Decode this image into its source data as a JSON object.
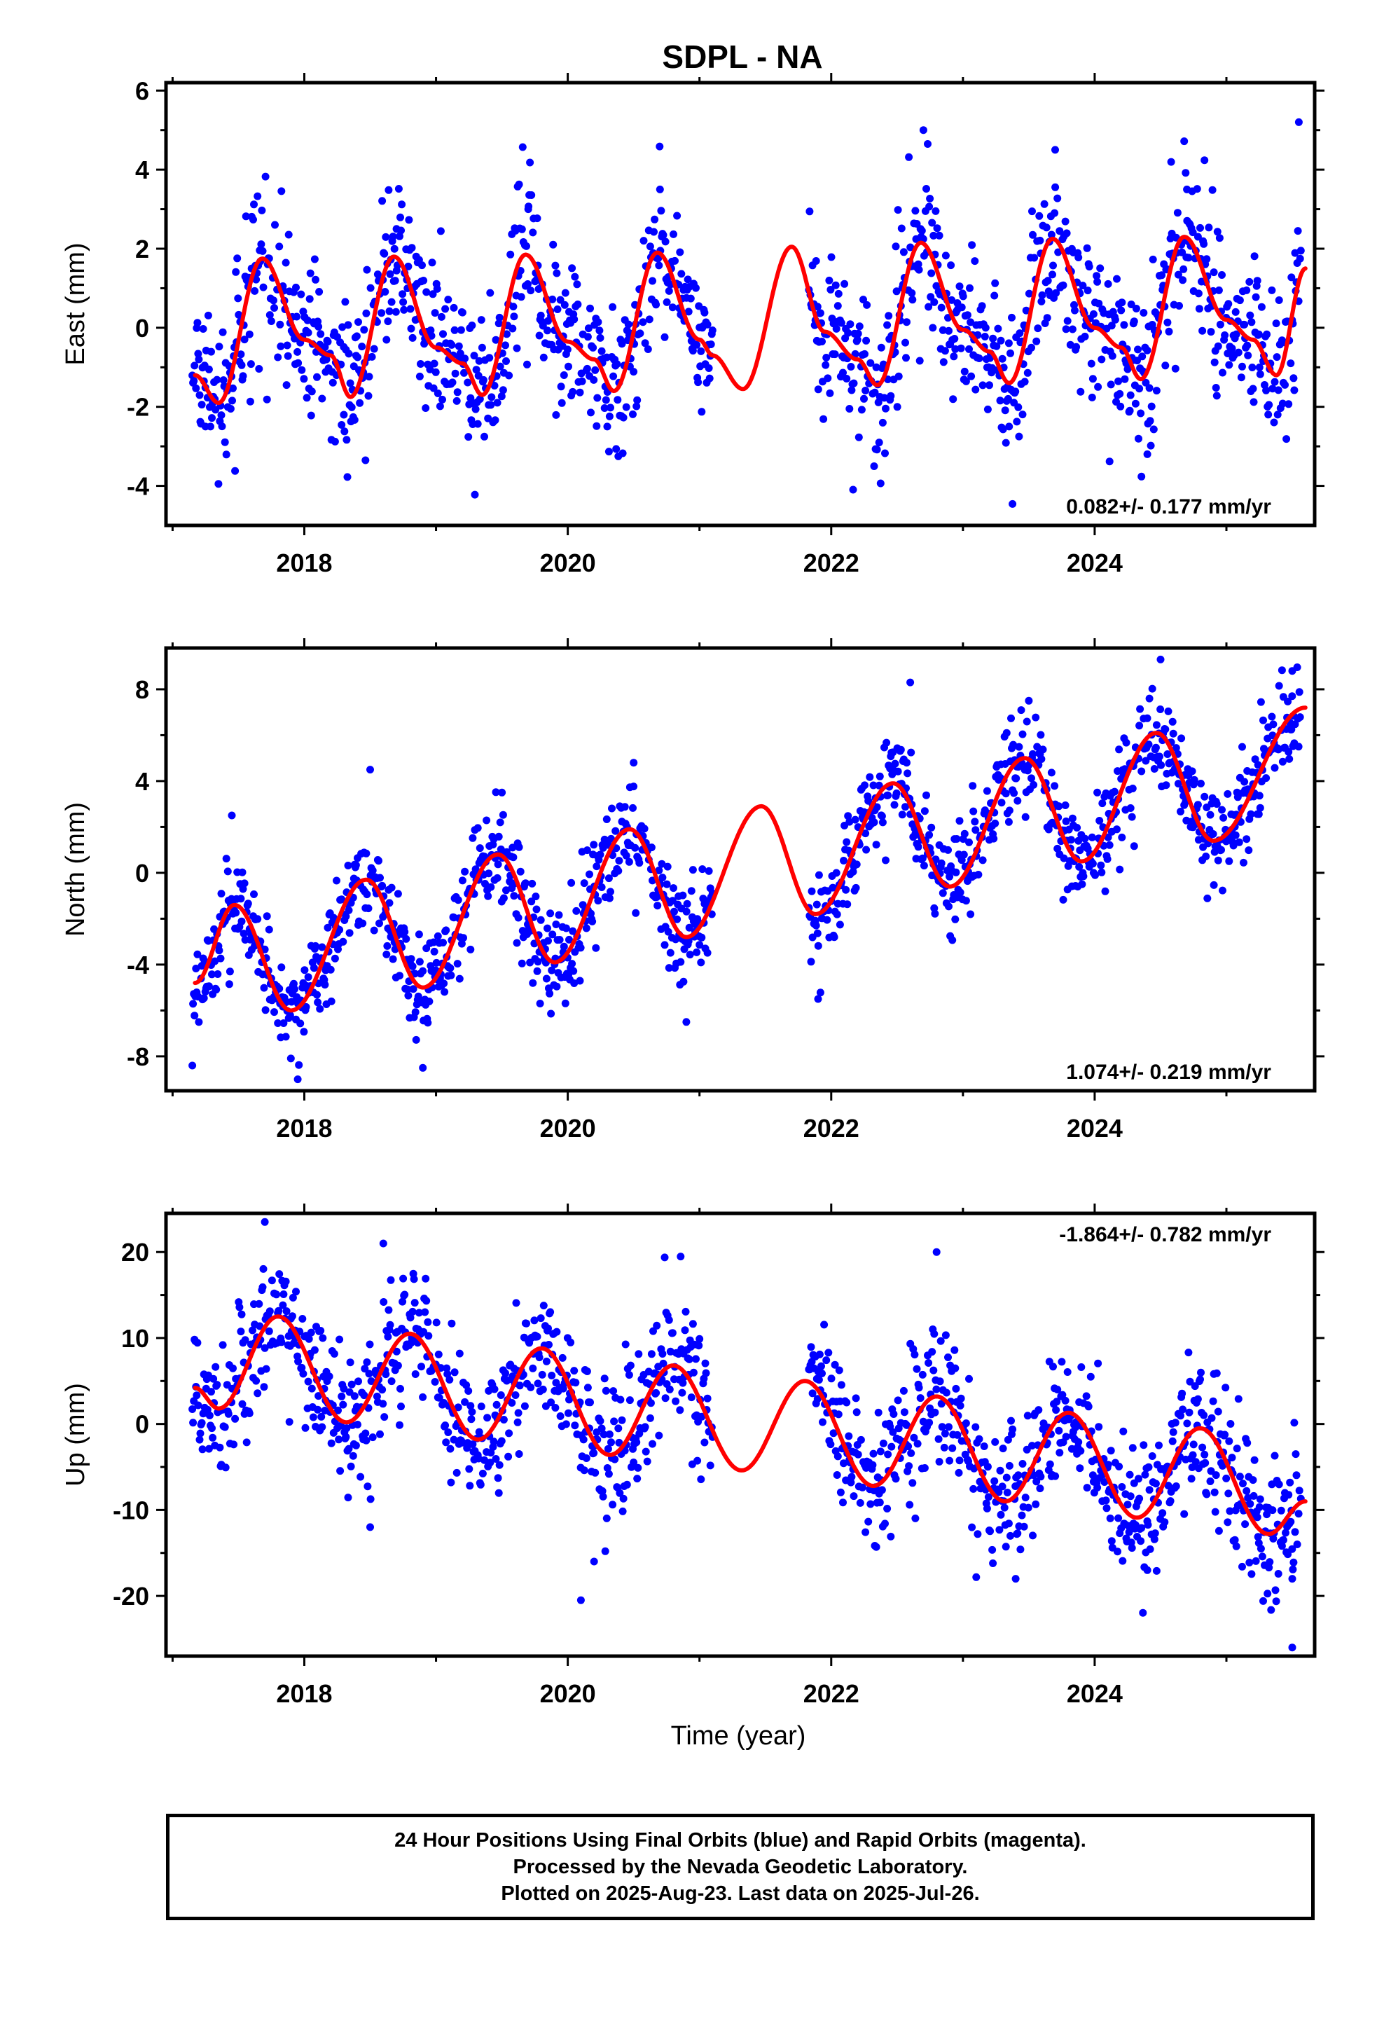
{
  "title": "SDPL - NA",
  "footer": {
    "line1": "24 Hour Positions Using Final Orbits (blue) and Rapid Orbits (magenta).",
    "line2": "Processed by the Nevada Geodetic Laboratory.",
    "line3": "Plotted on 2025-Aug-23. Last data on 2025-Jul-26."
  },
  "colors": {
    "points": "#0000ff",
    "fit": "#ff0000",
    "frame": "#000000"
  },
  "chart_data": [
    {
      "type": "scatter",
      "ylabel": "East (mm)",
      "xlabel": "",
      "xlim": [
        2016.95,
        2025.67
      ],
      "ylim": [
        -5,
        6.2
      ],
      "yticks": [
        -4,
        -2,
        0,
        2,
        4,
        6
      ],
      "xticks": [
        2018,
        2020,
        2022,
        2024
      ],
      "rate": "0.082+/- 0.177 mm/yr",
      "rate_position": "bottom-right",
      "data_gap": [
        2021.1,
        2021.83
      ],
      "series": [
        {
          "name": "observed",
          "kind": "points",
          "seasonal_peak": 2017.67,
          "amplitude": 1.8,
          "noise": 1.0,
          "sample_points": [
            [
              2017.25,
              -2.5
            ],
            [
              2017.6,
              1.5
            ],
            [
              2018.3,
              -2.2
            ],
            [
              2018.7,
              2.5
            ],
            [
              2019.7,
              3.0
            ],
            [
              2020.3,
              -2.5
            ],
            [
              2020.7,
              3.5
            ],
            [
              2022.7,
              5.0
            ],
            [
              2023.35,
              -2.5
            ],
            [
              2023.7,
              4.5
            ],
            [
              2024.4,
              -3.2
            ],
            [
              2024.7,
              3.5
            ],
            [
              2025.55,
              5.2
            ]
          ]
        },
        {
          "name": "model fit",
          "kind": "line",
          "points": [
            [
              2017.17,
              -1.2
            ],
            [
              2017.35,
              -1.9
            ],
            [
              2017.68,
              1.75
            ],
            [
              2018.0,
              -0.3
            ],
            [
              2018.2,
              -0.7
            ],
            [
              2018.35,
              -1.75
            ],
            [
              2018.68,
              1.8
            ],
            [
              2019.0,
              -0.5
            ],
            [
              2019.2,
              -0.9
            ],
            [
              2019.35,
              -1.7
            ],
            [
              2019.68,
              1.85
            ],
            [
              2020.0,
              -0.35
            ],
            [
              2020.2,
              -0.8
            ],
            [
              2020.35,
              -1.6
            ],
            [
              2020.68,
              1.9
            ],
            [
              2021.0,
              -0.3
            ],
            [
              2021.1,
              -0.7
            ],
            [
              2021.33,
              -1.55
            ],
            [
              2021.7,
              2.05
            ],
            [
              2021.95,
              -0.1
            ],
            [
              2022.2,
              -0.8
            ],
            [
              2022.35,
              -1.45
            ],
            [
              2022.68,
              2.15
            ],
            [
              2023.0,
              -0.05
            ],
            [
              2023.2,
              -0.6
            ],
            [
              2023.35,
              -1.4
            ],
            [
              2023.68,
              2.25
            ],
            [
              2024.0,
              0.0
            ],
            [
              2024.2,
              -0.5
            ],
            [
              2024.35,
              -1.3
            ],
            [
              2024.68,
              2.3
            ],
            [
              2025.0,
              0.2
            ],
            [
              2025.2,
              -0.3
            ],
            [
              2025.38,
              -1.2
            ],
            [
              2025.6,
              1.5
            ]
          ]
        }
      ]
    },
    {
      "type": "scatter",
      "ylabel": "North (mm)",
      "xlabel": "",
      "xlim": [
        2016.95,
        2025.67
      ],
      "ylim": [
        -9.5,
        9.8
      ],
      "yticks": [
        -8,
        -4,
        0,
        4,
        8
      ],
      "xticks": [
        2018,
        2020,
        2022,
        2024
      ],
      "rate": "1.074+/- 0.219 mm/yr",
      "rate_position": "bottom-right",
      "data_gap": [
        2021.1,
        2021.83
      ],
      "series": [
        {
          "name": "observed",
          "kind": "points",
          "seasonal_peak": 2017.47,
          "amplitude": 2.4,
          "noise": 1.1,
          "sample_points": [
            [
              2017.15,
              -8.4
            ],
            [
              2017.45,
              2.5
            ],
            [
              2017.95,
              -9.0
            ],
            [
              2018.5,
              4.5
            ],
            [
              2018.9,
              -8.5
            ],
            [
              2019.5,
              3.5
            ],
            [
              2020.5,
              4.8
            ],
            [
              2020.9,
              -6.5
            ],
            [
              2021.9,
              -5.5
            ],
            [
              2022.6,
              8.3
            ],
            [
              2023.5,
              7.5
            ],
            [
              2024.5,
              9.3
            ],
            [
              2025.5,
              8.8
            ]
          ]
        },
        {
          "name": "model fit",
          "kind": "line",
          "points": [
            [
              2017.17,
              -4.8
            ],
            [
              2017.47,
              -1.4
            ],
            [
              2017.9,
              -6.0
            ],
            [
              2018.47,
              -0.3
            ],
            [
              2018.9,
              -5.0
            ],
            [
              2019.47,
              0.8
            ],
            [
              2019.9,
              -3.9
            ],
            [
              2020.47,
              1.9
            ],
            [
              2020.9,
              -2.8
            ],
            [
              2021.47,
              2.9
            ],
            [
              2021.88,
              -1.8
            ],
            [
              2022.47,
              3.9
            ],
            [
              2022.9,
              -0.6
            ],
            [
              2023.47,
              5.0
            ],
            [
              2023.9,
              0.5
            ],
            [
              2024.47,
              6.1
            ],
            [
              2024.9,
              1.4
            ],
            [
              2025.6,
              7.2
            ]
          ]
        }
      ]
    },
    {
      "type": "scatter",
      "ylabel": "Up (mm)",
      "xlabel": "Time (year)",
      "xlim": [
        2016.95,
        2025.67
      ],
      "ylim": [
        -27,
        24.5
      ],
      "yticks": [
        -20,
        -10,
        0,
        10,
        20
      ],
      "xticks": [
        2018,
        2020,
        2022,
        2024
      ],
      "rate": "-1.864+/- 0.782 mm/yr",
      "rate_position": "top-right",
      "data_gap": [
        2021.1,
        2021.83
      ],
      "series": [
        {
          "name": "observed",
          "kind": "points",
          "seasonal_peak": 2017.8,
          "amplitude": 6.0,
          "noise": 4.0,
          "sample_points": [
            [
              2017.7,
              23.5
            ],
            [
              2018.6,
              21.0
            ],
            [
              2018.5,
              -12.0
            ],
            [
              2020.1,
              -20.5
            ],
            [
              2020.2,
              -16.0
            ],
            [
              2022.8,
              20.0
            ],
            [
              2023.4,
              -18.0
            ],
            [
              2024.4,
              -17.0
            ],
            [
              2025.5,
              -26.0
            ],
            [
              2025.5,
              -18.0
            ]
          ]
        },
        {
          "name": "model fit",
          "kind": "line",
          "points": [
            [
              2017.17,
              4.2
            ],
            [
              2017.35,
              1.8
            ],
            [
              2017.8,
              12.5
            ],
            [
              2018.32,
              0.2
            ],
            [
              2018.8,
              10.5
            ],
            [
              2019.32,
              -1.8
            ],
            [
              2019.8,
              8.8
            ],
            [
              2020.32,
              -3.6
            ],
            [
              2020.8,
              6.8
            ],
            [
              2021.32,
              -5.4
            ],
            [
              2021.8,
              5.0
            ],
            [
              2022.32,
              -7.2
            ],
            [
              2022.8,
              3.2
            ],
            [
              2023.32,
              -9.0
            ],
            [
              2023.8,
              1.3
            ],
            [
              2024.32,
              -10.9
            ],
            [
              2024.8,
              -0.5
            ],
            [
              2025.32,
              -12.8
            ],
            [
              2025.6,
              -9.0
            ]
          ]
        }
      ]
    }
  ]
}
